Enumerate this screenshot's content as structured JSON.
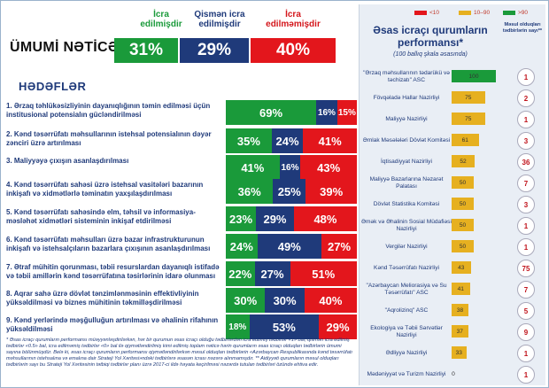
{
  "summary": {
    "title": "ÜMUMİ NƏTİCƏ",
    "headers": {
      "executed": "İcra edilmişdir",
      "partial": "Qismən icra edilmişdir",
      "not_executed": "İcra edilməmişdir"
    },
    "executed_pct": "31%",
    "partial_pct": "29%",
    "not_executed_pct": "40%"
  },
  "goals": {
    "title": "HƏDƏFLƏR",
    "items": [
      {
        "text": "1. Ərzaq təhlükəsizliyinin dayanıqlığının təmin edilməsi üçün institusional potensialın gücləndirilməsi",
        "green": 69,
        "blue": 16,
        "red": 15,
        "g": "69%",
        "b": "16%",
        "r": "15%"
      },
      {
        "text": "2. Kənd təsərrüfatı məhsullarının istehsal potensialının dəyər zənciri üzrə artırılması",
        "green": 35,
        "blue": 24,
        "red": 41,
        "g": "35%",
        "b": "24%",
        "r": "41%"
      },
      {
        "text": "3. Maliyyəyə çıxışın asanlaşdırılması",
        "green": 41,
        "blue": 16,
        "red": 43,
        "g": "41%",
        "b": "16%",
        "r": "43%"
      },
      {
        "text": "4. Kənd təsərrüfatı sahəsi üzrə istehsal vasitələri bazarının inkişafı və xidmətlərlə təminatın yaxşılaşdırılması",
        "green": 36,
        "blue": 25,
        "red": 39,
        "g": "36%",
        "b": "25%",
        "r": "39%"
      },
      {
        "text": "5. Kənd təsərrüfatı sahəsində elm, təhsil və informasiya-məsləhət xidmətləri sisteminin inkişaf etdirilməsi",
        "green": 23,
        "blue": 29,
        "red": 48,
        "g": "23%",
        "b": "29%",
        "r": "48%"
      },
      {
        "text": "6. Kənd təsərrüfatı məhsulları üzrə bazar infrastrukturunun inkişafı və istehsalçıların bazarlara çıxışının asanlaşdırılması",
        "green": 24,
        "blue": 49,
        "red": 27,
        "g": "24%",
        "b": "49%",
        "r": "27%"
      },
      {
        "text": "7. Ətraf mühitin qorunması, təbii resurslardan dayanıqlı istifadə və təbii amillərin kənd təsərrüfatına təsirlərinin idarə olunması",
        "green": 22,
        "blue": 27,
        "red": 51,
        "g": "22%",
        "b": "27%",
        "r": "51%"
      },
      {
        "text": "8. Aqrar sahə üzrə dövlət tənzimlənməsinin effektivliyinin yüksəldilməsi və biznes mühitinin təkmilləşdirilməsi",
        "green": 30,
        "blue": 30,
        "red": 40,
        "g": "30%",
        "b": "30%",
        "r": "40%"
      },
      {
        "text": "9. Kənd yerlərində məşğulluğun artırılması və əhalinin rifahının yüksəldilməsi",
        "green": 18,
        "blue": 53,
        "red": 29,
        "g": "18%",
        "b": "53%",
        "r": "29%"
      }
    ]
  },
  "footnote": "* Əsas icraçı qurumların performansı müəyyənləşdirilərkən, hər bir qurumun əsas icraçı olduğu tədbirlərdən icra edilmiş tədbirlər «1» bal, qismən icra edilmiş tədbirlər «0.5» bal, icra edilməmiş tədbirlər «0» bal ilə qiymətləndirilmiş kimi edilmiş toplam nəticə hərin qurumların əsas icraçı olduqları tədbirlərin ümumi sayına bölünmüşdür. Belə ki, əsas icraçı qurumların performansı qiymətləndirilərkən məsul olduqları tədbirlərin «Azərbaycan Respublikasında kənd təsərrüfatı məhsullarının istehsalına və emalına dair Strateji Yol Xəritəsi»ndəki tədbirlərə əsasən icrası nəzərə alınmamışdır. ** Aidiyyəti qurumların məsul olduqları tədbirlərin sayı bu Strateji Yol Xəritəsinin tətbiqi tədbirlər planı üzrə 2017-ci ildə həyata keçirilməsi nəzərdə tutulan tədbirləri özündə ehtiva edir.",
  "performance": {
    "title": "Əsas icraçı qurumların performansı*",
    "subtitle": "(100 ballıq şkala əsasında)",
    "col_header": "Məsul olduqları tədbirlərin sayı**",
    "legend": {
      "low": "<10",
      "mid": "10–90",
      "high": ">90"
    },
    "colors": {
      "low": "#e3161c",
      "mid": "#e6b020",
      "high": "#1a9a3a"
    },
    "rows": [
      {
        "name": "\"Ərzaq məhsullarının tədarükü və təchizatı\" ASC",
        "score": 100,
        "count": "1"
      },
      {
        "name": "Fövqəladə Hallar Nazirliyi",
        "score": 75,
        "count": "2"
      },
      {
        "name": "Maliyyə Nazirliyi",
        "score": 75,
        "count": "1"
      },
      {
        "name": "Əmlak Məsələləri Dövlət Komitəsi",
        "score": 61,
        "count": "3"
      },
      {
        "name": "İqtisadiyyat Nazirliyi",
        "score": 52,
        "count": "36"
      },
      {
        "name": "Maliyyə Bazarlarına Nəzarət Palatası",
        "score": 50,
        "count": "7"
      },
      {
        "name": "Dövlət Statistika Komitəsi",
        "score": 50,
        "count": "3"
      },
      {
        "name": "Əmək və Əhalinin Sosial Müdafiəsi Nazirliyi",
        "score": 50,
        "count": "1"
      },
      {
        "name": "Vergilər Nazirliyi",
        "score": 50,
        "count": "1"
      },
      {
        "name": "Kənd Təsərrüfatı Nazirliyi",
        "score": 43,
        "count": "75"
      },
      {
        "name": "\"Azərbaycan Meliorasiya və Su Təsərrüfatı\" ASC",
        "score": 41,
        "count": "7"
      },
      {
        "name": "\"Aqrolizinq\" ASC",
        "score": 38,
        "count": "5"
      },
      {
        "name": "Ekologiya və Təbii Sərvətlər Nazirliyi",
        "score": 37,
        "count": "9"
      },
      {
        "name": "Ədliyyə Nazirliyi",
        "score": 33,
        "count": "1"
      },
      {
        "name": "Mədəniyyət və Turizm Nazirliyi",
        "score": 0,
        "count": "1"
      }
    ]
  }
}
